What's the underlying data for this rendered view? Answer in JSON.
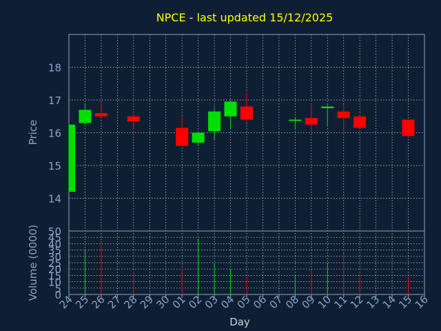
{
  "colors": {
    "background": "#0f1f33",
    "axis": "#8aa4c8",
    "grid": "#c8d2e0",
    "title": "#ffff00",
    "up": "#00e000",
    "down": "#ff0000",
    "wick": "#c8c8c8"
  },
  "chart_data": {
    "type": "candlestick",
    "title": "NPCE - last updated 15/12/2025",
    "xlabel": "Day",
    "price_panel": {
      "ylabel": "Price",
      "ylim": [
        13,
        19
      ],
      "yticks": [
        14,
        15,
        16,
        17,
        18
      ]
    },
    "volume_panel": {
      "ylabel": "Volume (0000)",
      "ylim": [
        0,
        50
      ],
      "yticks": [
        0,
        5,
        10,
        15,
        20,
        25,
        30,
        35,
        40,
        45,
        50
      ]
    },
    "x_ticks": [
      "24",
      "25",
      "26",
      "27",
      "28",
      "29",
      "30",
      "01",
      "02",
      "03",
      "04",
      "05",
      "06",
      "07",
      "08",
      "09",
      "10",
      "11",
      "12",
      "13",
      "14",
      "15",
      "16"
    ],
    "grid": true,
    "candles": [
      {
        "day": "24",
        "open": 14.2,
        "high": 16.3,
        "low": 14.2,
        "close": 16.25,
        "volume": 0
      },
      {
        "day": "25",
        "open": 16.3,
        "high": 16.9,
        "low": 16.25,
        "close": 16.7,
        "volume": 35
      },
      {
        "day": "26",
        "open": 16.6,
        "high": 16.95,
        "low": 16.5,
        "close": 16.5,
        "volume": 40
      },
      {
        "day": "28",
        "open": 16.5,
        "high": 16.55,
        "low": 16.1,
        "close": 16.35,
        "volume": 18
      },
      {
        "day": "01",
        "open": 16.15,
        "high": 16.5,
        "low": 15.6,
        "close": 15.6,
        "volume": 20
      },
      {
        "day": "02",
        "open": 15.7,
        "high": 16.0,
        "low": 15.6,
        "close": 16.0,
        "volume": 44
      },
      {
        "day": "03",
        "open": 16.05,
        "high": 16.75,
        "low": 15.8,
        "close": 16.65,
        "volume": 24
      },
      {
        "day": "04",
        "open": 16.5,
        "high": 17.0,
        "low": 16.1,
        "close": 16.95,
        "volume": 20
      },
      {
        "day": "05",
        "open": 16.8,
        "high": 17.25,
        "low": 16.3,
        "close": 16.4,
        "volume": 14
      },
      {
        "day": "08",
        "open": 16.4,
        "high": 16.45,
        "low": 16.1,
        "close": 16.4,
        "volume": 15
      },
      {
        "day": "09",
        "open": 16.45,
        "high": 16.85,
        "low": 16.0,
        "close": 16.25,
        "volume": 19
      },
      {
        "day": "10",
        "open": 16.75,
        "high": 16.85,
        "low": 16.2,
        "close": 16.8,
        "volume": 25
      },
      {
        "day": "11",
        "open": 16.65,
        "high": 16.85,
        "low": 16.0,
        "close": 16.45,
        "volume": 32
      },
      {
        "day": "12",
        "open": 16.5,
        "high": 16.55,
        "low": 16.1,
        "close": 16.15,
        "volume": 16
      },
      {
        "day": "15",
        "open": 16.4,
        "high": 16.4,
        "low": 15.85,
        "close": 15.9,
        "volume": 14
      }
    ]
  }
}
